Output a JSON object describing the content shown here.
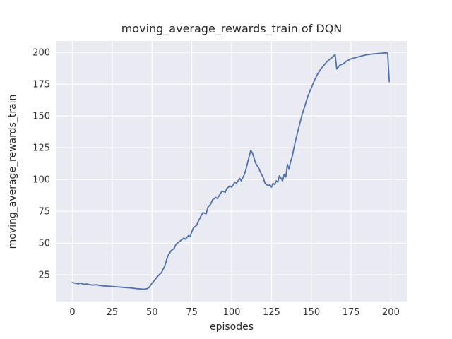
{
  "chart_data": {
    "type": "line",
    "title": "moving_average_rewards_train of DQN",
    "xlabel": "episodes",
    "ylabel": "moving_average_rewards_train",
    "xlim": [
      -10,
      210
    ],
    "ylim": [
      4,
      209
    ],
    "xticks": [
      0,
      25,
      50,
      75,
      100,
      125,
      150,
      175,
      200
    ],
    "yticks": [
      25,
      50,
      75,
      100,
      125,
      150,
      175,
      200
    ],
    "grid": "on",
    "legend": "none",
    "colors": {
      "figure_bg": "#ffffff",
      "plot_bg": "#eaeaf2",
      "grid": "#ffffff",
      "line": "#4c72b0",
      "text": "#262626"
    },
    "series": [
      {
        "name": "moving_average_rewards_train",
        "color": "#4c72b0",
        "points": [
          [
            0,
            19
          ],
          [
            2,
            18.4
          ],
          [
            4,
            18
          ],
          [
            5,
            18.6
          ],
          [
            7,
            17.6
          ],
          [
            9,
            17.9
          ],
          [
            11,
            17.2
          ],
          [
            13,
            17
          ],
          [
            15,
            17.3
          ],
          [
            17,
            16.7
          ],
          [
            19,
            16.4
          ],
          [
            22,
            16.1
          ],
          [
            25,
            15.9
          ],
          [
            28,
            15.6
          ],
          [
            31,
            15.3
          ],
          [
            34,
            15
          ],
          [
            37,
            14.7
          ],
          [
            40,
            14.2
          ],
          [
            43,
            13.9
          ],
          [
            45,
            13.7
          ],
          [
            47,
            14.2
          ],
          [
            48,
            15
          ],
          [
            50,
            18.5
          ],
          [
            52,
            21.5
          ],
          [
            54,
            24.5
          ],
          [
            56,
            27
          ],
          [
            58,
            32
          ],
          [
            60,
            40
          ],
          [
            62,
            44
          ],
          [
            64,
            46
          ],
          [
            65,
            49
          ],
          [
            67,
            51
          ],
          [
            68,
            52
          ],
          [
            70,
            54
          ],
          [
            71,
            53
          ],
          [
            73,
            56
          ],
          [
            74,
            55
          ],
          [
            75,
            59
          ],
          [
            76,
            62
          ],
          [
            78,
            64
          ],
          [
            79,
            67
          ],
          [
            81,
            72
          ],
          [
            82,
            74
          ],
          [
            84,
            73
          ],
          [
            85,
            78
          ],
          [
            87,
            81
          ],
          [
            88,
            84
          ],
          [
            90,
            86
          ],
          [
            91,
            85
          ],
          [
            93,
            89
          ],
          [
            94,
            91
          ],
          [
            96,
            90
          ],
          [
            97,
            93
          ],
          [
            99,
            95
          ],
          [
            100,
            94
          ],
          [
            102,
            98
          ],
          [
            103,
            97
          ],
          [
            105,
            101
          ],
          [
            106,
            99
          ],
          [
            108,
            104
          ],
          [
            109,
            108
          ],
          [
            110,
            113
          ],
          [
            111,
            118
          ],
          [
            112,
            123
          ],
          [
            113,
            121
          ],
          [
            114,
            117
          ],
          [
            115,
            113
          ],
          [
            117,
            109
          ],
          [
            118,
            106
          ],
          [
            120,
            101
          ],
          [
            121,
            97
          ],
          [
            123,
            95
          ],
          [
            124,
            96
          ],
          [
            125,
            94
          ],
          [
            126,
            97
          ],
          [
            127,
            96
          ],
          [
            128,
            99
          ],
          [
            129,
            98
          ],
          [
            130,
            103
          ],
          [
            131,
            101
          ],
          [
            132,
            99
          ],
          [
            133,
            104
          ],
          [
            134,
            102
          ],
          [
            135,
            112
          ],
          [
            136,
            108
          ],
          [
            137,
            114
          ],
          [
            138,
            118
          ],
          [
            140,
            130
          ],
          [
            142,
            140
          ],
          [
            144,
            150
          ],
          [
            146,
            158
          ],
          [
            148,
            166
          ],
          [
            150,
            172
          ],
          [
            152,
            178
          ],
          [
            154,
            183
          ],
          [
            156,
            187
          ],
          [
            158,
            190
          ],
          [
            160,
            193
          ],
          [
            162,
            195
          ],
          [
            164,
            197
          ],
          [
            165,
            198.5
          ],
          [
            166,
            187
          ],
          [
            168,
            190
          ],
          [
            170,
            191
          ],
          [
            172,
            193
          ],
          [
            175,
            195
          ],
          [
            178,
            196
          ],
          [
            181,
            197
          ],
          [
            184,
            198
          ],
          [
            187,
            198.5
          ],
          [
            190,
            199
          ],
          [
            193,
            199.3
          ],
          [
            195,
            199.5
          ],
          [
            197,
            199.8
          ],
          [
            198,
            199.5
          ],
          [
            199,
            177
          ]
        ]
      }
    ]
  }
}
